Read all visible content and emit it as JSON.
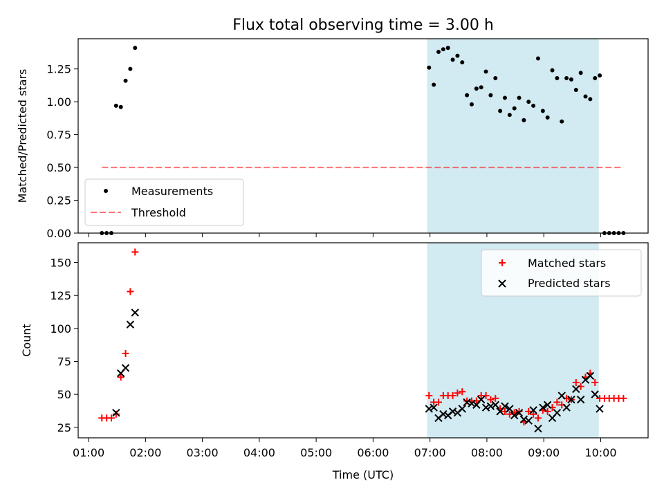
{
  "title": "Flux total observing time = 3.00 h",
  "colors": {
    "background": "#ffffff",
    "shade": "#add8e6",
    "threshold": "#ff0000",
    "measurements": "#000000",
    "matched": "#ff0000",
    "predicted": "#000000"
  },
  "chart_data": [
    {
      "type": "scatter",
      "ylabel": "Matched/Predicted stars",
      "ylim": [
        0,
        1.48
      ],
      "yticks": [
        "0.00",
        "0.25",
        "0.50",
        "0.75",
        "1.00",
        "1.25"
      ],
      "shaded_span": [
        "06:57",
        "09:58"
      ],
      "legend": {
        "position": "bottom-left",
        "entries": [
          "Measurements",
          "Threshold"
        ]
      },
      "series": [
        {
          "name": "Measurements",
          "marker": "dot",
          "points": [
            [
              "01:14",
              0.0
            ],
            [
              "01:19",
              0.0
            ],
            [
              "01:24",
              0.0
            ],
            [
              "01:29",
              0.97
            ],
            [
              "01:34",
              0.96
            ],
            [
              "01:39",
              1.16
            ],
            [
              "01:44",
              1.25
            ],
            [
              "01:49",
              1.41
            ],
            [
              "06:59",
              1.26
            ],
            [
              "07:04",
              1.13
            ],
            [
              "07:09",
              1.38
            ],
            [
              "07:14",
              1.4
            ],
            [
              "07:19",
              1.41
            ],
            [
              "07:24",
              1.32
            ],
            [
              "07:29",
              1.35
            ],
            [
              "07:34",
              1.3
            ],
            [
              "07:39",
              1.05
            ],
            [
              "07:44",
              0.98
            ],
            [
              "07:49",
              1.1
            ],
            [
              "07:54",
              1.11
            ],
            [
              "07:59",
              1.23
            ],
            [
              "08:04",
              1.05
            ],
            [
              "08:09",
              1.18
            ],
            [
              "08:14",
              0.93
            ],
            [
              "08:19",
              1.03
            ],
            [
              "08:24",
              0.9
            ],
            [
              "08:29",
              0.95
            ],
            [
              "08:34",
              1.03
            ],
            [
              "08:39",
              0.86
            ],
            [
              "08:44",
              1.0
            ],
            [
              "08:49",
              0.97
            ],
            [
              "08:54",
              1.33
            ],
            [
              "08:59",
              0.93
            ],
            [
              "09:04",
              0.88
            ],
            [
              "09:09",
              1.24
            ],
            [
              "09:14",
              1.18
            ],
            [
              "09:19",
              0.85
            ],
            [
              "09:24",
              1.18
            ],
            [
              "09:29",
              1.17
            ],
            [
              "09:34",
              1.09
            ],
            [
              "09:39",
              1.22
            ],
            [
              "09:44",
              1.04
            ],
            [
              "09:49",
              1.02
            ],
            [
              "09:54",
              1.18
            ],
            [
              "09:59",
              1.2
            ],
            [
              "10:04",
              0.0
            ],
            [
              "10:09",
              0.0
            ],
            [
              "10:14",
              0.0
            ],
            [
              "10:19",
              0.0
            ],
            [
              "10:24",
              0.0
            ]
          ]
        },
        {
          "name": "Threshold",
          "type": "line",
          "style": "dashed",
          "x": [
            "01:14",
            "10:24"
          ],
          "y": [
            0.5,
            0.5
          ]
        }
      ]
    },
    {
      "type": "scatter",
      "xlabel": "Time (UTC)",
      "ylabel": "Count",
      "ylim": [
        17,
        165
      ],
      "yticks": [
        "25",
        "50",
        "75",
        "100",
        "125",
        "150"
      ],
      "xlim": [
        "00:49",
        "10:50"
      ],
      "xticks": [
        "01:00",
        "02:00",
        "03:00",
        "04:00",
        "05:00",
        "06:00",
        "07:00",
        "08:00",
        "09:00",
        "10:00"
      ],
      "shaded_span": [
        "06:57",
        "09:58"
      ],
      "legend": {
        "position": "top-right",
        "entries": [
          "Matched stars",
          "Predicted stars"
        ]
      },
      "series": [
        {
          "name": "Matched stars",
          "marker": "plus",
          "points": [
            [
              "01:14",
              32
            ],
            [
              "01:19",
              32
            ],
            [
              "01:24",
              32
            ],
            [
              "01:29",
              35
            ],
            [
              "01:34",
              63
            ],
            [
              "01:39",
              81
            ],
            [
              "01:44",
              128
            ],
            [
              "01:49",
              158
            ],
            [
              "06:59",
              49
            ],
            [
              "07:04",
              44
            ],
            [
              "07:09",
              44
            ],
            [
              "07:14",
              49
            ],
            [
              "07:19",
              49
            ],
            [
              "07:24",
              49
            ],
            [
              "07:29",
              51
            ],
            [
              "07:34",
              52
            ],
            [
              "07:39",
              45
            ],
            [
              "07:44",
              45
            ],
            [
              "07:49",
              45
            ],
            [
              "07:54",
              49
            ],
            [
              "07:59",
              49
            ],
            [
              "08:04",
              46
            ],
            [
              "08:09",
              47
            ],
            [
              "08:14",
              39
            ],
            [
              "08:19",
              37
            ],
            [
              "08:24",
              35
            ],
            [
              "08:29",
              36
            ],
            [
              "08:34",
              37
            ],
            [
              "08:39",
              29
            ],
            [
              "08:44",
              37
            ],
            [
              "08:49",
              35
            ],
            [
              "08:54",
              32
            ],
            [
              "08:59",
              38
            ],
            [
              "09:04",
              37
            ],
            [
              "09:09",
              40
            ],
            [
              "09:14",
              44
            ],
            [
              "09:19",
              42
            ],
            [
              "09:24",
              47
            ],
            [
              "09:29",
              46
            ],
            [
              "09:34",
              59
            ],
            [
              "09:39",
              56
            ],
            [
              "09:44",
              63
            ],
            [
              "09:49",
              66
            ],
            [
              "09:54",
              59
            ],
            [
              "09:59",
              47
            ],
            [
              "10:04",
              47
            ],
            [
              "10:09",
              47
            ],
            [
              "10:14",
              47
            ],
            [
              "10:19",
              47
            ],
            [
              "10:24",
              47
            ]
          ]
        },
        {
          "name": "Predicted stars",
          "marker": "x",
          "points": [
            [
              "01:29",
              36
            ],
            [
              "01:34",
              66
            ],
            [
              "01:39",
              70
            ],
            [
              "01:44",
              103
            ],
            [
              "01:49",
              112
            ],
            [
              "06:59",
              39
            ],
            [
              "07:04",
              40
            ],
            [
              "07:09",
              32
            ],
            [
              "07:14",
              35
            ],
            [
              "07:19",
              34
            ],
            [
              "07:24",
              37
            ],
            [
              "07:29",
              36
            ],
            [
              "07:34",
              39
            ],
            [
              "07:39",
              44
            ],
            [
              "07:44",
              43
            ],
            [
              "07:49",
              42
            ],
            [
              "07:54",
              46
            ],
            [
              "07:59",
              40
            ],
            [
              "08:04",
              41
            ],
            [
              "08:09",
              42
            ],
            [
              "08:14",
              37
            ],
            [
              "08:19",
              41
            ],
            [
              "08:24",
              39
            ],
            [
              "08:29",
              34
            ],
            [
              "08:34",
              36
            ],
            [
              "08:39",
              31
            ],
            [
              "08:44",
              30
            ],
            [
              "08:49",
              38
            ],
            [
              "08:54",
              24
            ],
            [
              "08:59",
              40
            ],
            [
              "09:04",
              42
            ],
            [
              "09:09",
              32
            ],
            [
              "09:14",
              36
            ],
            [
              "09:19",
              49
            ],
            [
              "09:24",
              40
            ],
            [
              "09:29",
              46
            ],
            [
              "09:34",
              54
            ],
            [
              "09:39",
              46
            ],
            [
              "09:44",
              61
            ],
            [
              "09:49",
              64
            ],
            [
              "09:54",
              50
            ],
            [
              "09:59",
              39
            ]
          ]
        }
      ]
    }
  ]
}
